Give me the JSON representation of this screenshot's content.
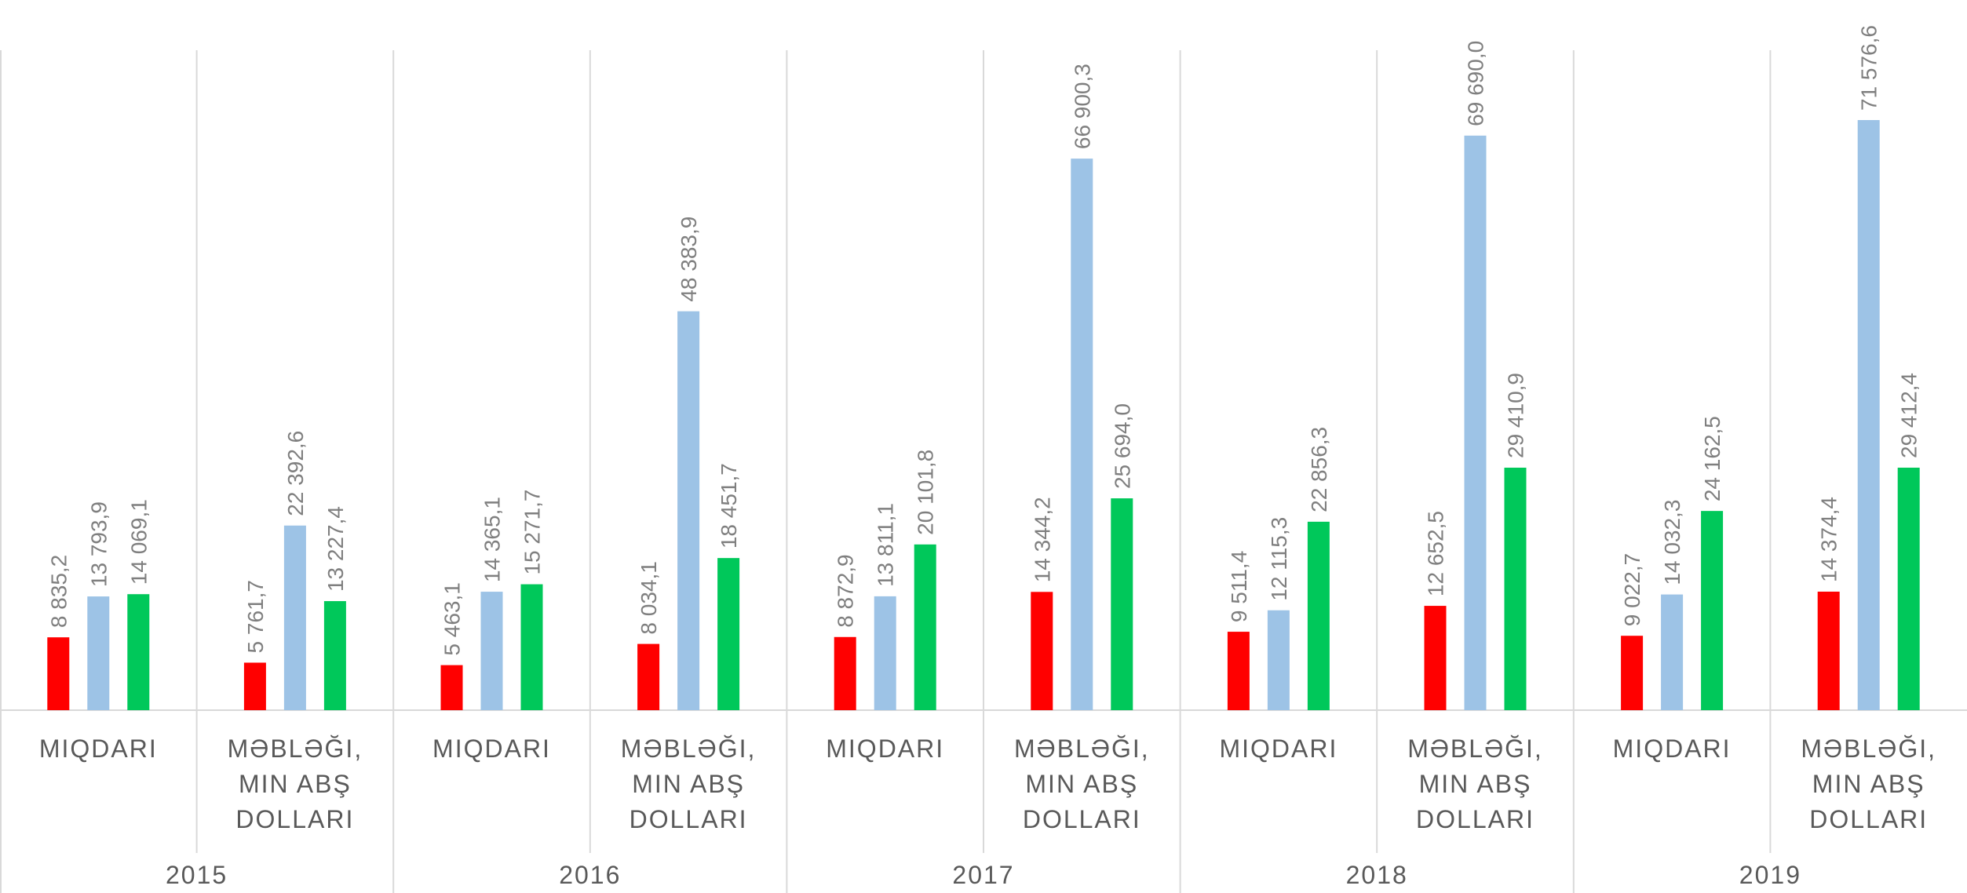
{
  "chart_data": {
    "type": "bar",
    "groups": [
      "2015",
      "2016",
      "2017",
      "2018",
      "2019"
    ],
    "categories": [
      "MIQDARI",
      "MƏBLƏĞI, MIN ABŞ DOLLARI",
      "MIQDARI",
      "MƏBLƏĞI, MIN ABŞ DOLLARI",
      "MIQDARI",
      "MƏBLƏĞI, MIN ABŞ DOLLARI",
      "MIQDARI",
      "MƏBLƏĞI, MIN ABŞ DOLLARI",
      "MIQDARI",
      "MƏBLƏĞI, MIN ABŞ DOLLARI"
    ],
    "series": [
      {
        "color": "#ff0000",
        "values": [
          8835.2,
          5761.7,
          5463.1,
          8034.1,
          8872.9,
          14344.2,
          9511.4,
          12652.5,
          9022.7,
          14374.4
        ],
        "value_labels": [
          "8 835,2",
          "5 761,7",
          "5 463,1",
          "8 034,1",
          "8 872,9",
          "14 344,2",
          "9 511,4",
          "12 652,5",
          "9 022,7",
          "14 374,4"
        ]
      },
      {
        "color": "#9dc3e6",
        "values": [
          13793.9,
          22392.6,
          14365.1,
          48383.9,
          13811.1,
          66900.3,
          12115.3,
          69690.0,
          14032.3,
          71576.6
        ],
        "value_labels": [
          "13 793,9",
          "22 392,6",
          "14 365,1",
          "48 383,9",
          "13 811,1",
          "66 900,3",
          "12 115,3",
          "69 690,0",
          "14 032,3",
          "71 576,6"
        ]
      },
      {
        "color": "#00c85a",
        "values": [
          14069.1,
          13227.4,
          15271.7,
          18451.7,
          20101.8,
          25694.0,
          22856.3,
          29410.9,
          24162.5,
          29412.4
        ],
        "value_labels": [
          "14 069,1",
          "13 227,4",
          "15 271,7",
          "18 451,7",
          "20 101,8",
          "25 694,0",
          "22 856,3",
          "29 410,9",
          "24 162,5",
          "29 412,4"
        ]
      }
    ]
  }
}
